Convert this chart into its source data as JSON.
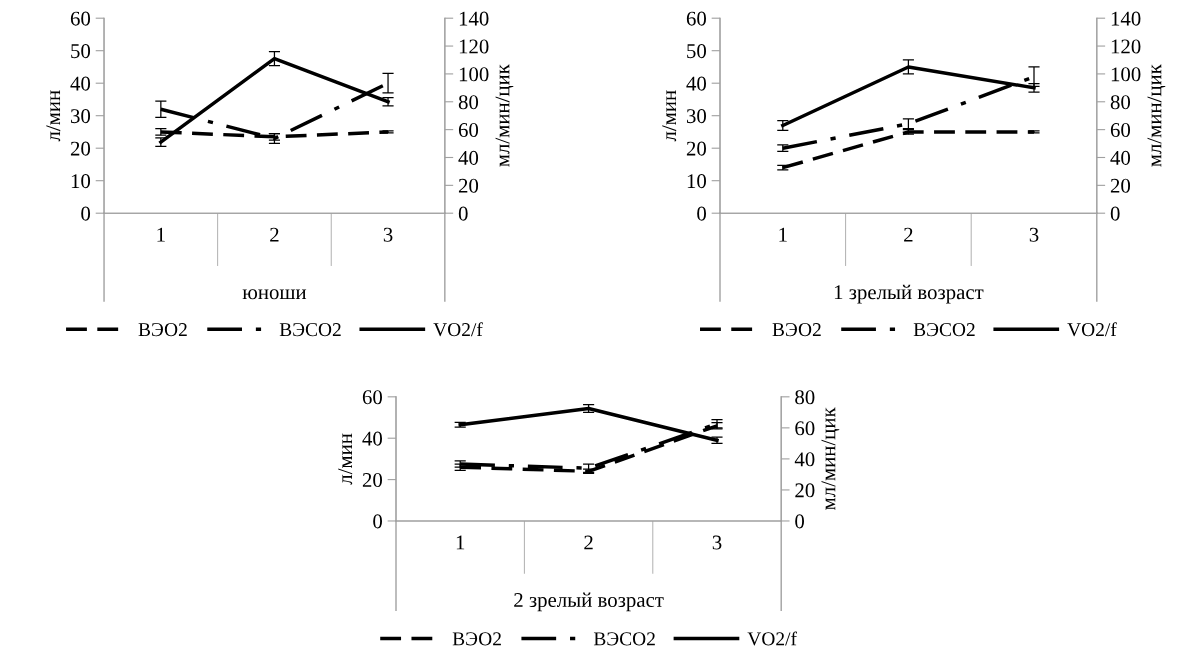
{
  "chart_data": [
    {
      "type": "line",
      "xlabel": "юноши",
      "ylabel": "л/мин",
      "y2label": "мл/мин/цик",
      "categories": [
        "1",
        "2",
        "3"
      ],
      "ylim": [
        0,
        60
      ],
      "yticks": [
        0,
        10,
        20,
        30,
        40,
        50,
        60
      ],
      "y2lim": [
        0,
        140
      ],
      "y2ticks": [
        0,
        20,
        40,
        60,
        80,
        100,
        120,
        140
      ],
      "legend": "bottom",
      "grid": false,
      "marker": "none",
      "series": [
        {
          "name": "ВЭО2",
          "color": "#000000",
          "line_style": "dashed",
          "values": [
            25,
            23.5,
            25
          ],
          "errors": [
            1,
            1,
            0.3
          ]
        },
        {
          "name": "ВЭСО2",
          "color": "#000000",
          "line_style": "dashdot",
          "values": [
            32,
            23,
            40
          ],
          "errors": [
            2.5,
            1.5,
            3
          ]
        },
        {
          "name": "VO2/f",
          "color": "#000000",
          "line_style": "solid",
          "axis": "y2",
          "values": [
            51,
            111,
            80
          ],
          "errors": [
            3,
            5,
            3
          ]
        }
      ]
    },
    {
      "type": "line",
      "xlabel": "1 зрелый возраст",
      "ylabel": "л/мин",
      "y2label": "мл/мин/цик",
      "categories": [
        "1",
        "2",
        "3"
      ],
      "ylim": [
        0,
        60
      ],
      "yticks": [
        0,
        10,
        20,
        30,
        40,
        50,
        60
      ],
      "y2lim": [
        0,
        140
      ],
      "y2ticks": [
        0,
        20,
        40,
        60,
        80,
        100,
        120,
        140
      ],
      "legend": "bottom",
      "grid": false,
      "marker": "none",
      "series": [
        {
          "name": "ВЭО2",
          "color": "#000000",
          "line_style": "dashed",
          "values": [
            14,
            25,
            25
          ],
          "errors": [
            0.7,
            0.7,
            0.3
          ]
        },
        {
          "name": "ВЭСО2",
          "color": "#000000",
          "line_style": "dashdot",
          "values": [
            20,
            27.5,
            42
          ],
          "errors": [
            1,
            1.5,
            3
          ]
        },
        {
          "name": "VO2/f",
          "color": "#000000",
          "line_style": "solid",
          "axis": "y2",
          "values": [
            63,
            105,
            90
          ],
          "errors": [
            3.5,
            5,
            3
          ]
        }
      ]
    },
    {
      "type": "line",
      "xlabel": "2 зрелый возраст",
      "ylabel": "л/мин",
      "y2label": "мл/мин/цик",
      "categories": [
        "1",
        "2",
        "3"
      ],
      "ylim": [
        0,
        60
      ],
      "yticks": [
        0,
        20,
        40,
        60
      ],
      "y2lim": [
        0,
        80
      ],
      "y2ticks": [
        0,
        20,
        40,
        60,
        80
      ],
      "legend": "bottom",
      "grid": false,
      "marker": "none",
      "series": [
        {
          "name": "ВЭО2",
          "color": "#000000",
          "line_style": "dashed",
          "values": [
            26,
            24,
            46
          ],
          "errors": [
            1.5,
            1,
            1.5
          ]
        },
        {
          "name": "ВЭСО2",
          "color": "#000000",
          "line_style": "dashdot",
          "values": [
            27.5,
            25.5,
            47
          ],
          "errors": [
            1.5,
            2,
            2
          ]
        },
        {
          "name": "VO2/f",
          "color": "#000000",
          "line_style": "solid",
          "axis": "y2",
          "values": [
            62,
            72.5,
            52
          ],
          "errors": [
            1.5,
            2.5,
            2
          ]
        }
      ]
    }
  ]
}
